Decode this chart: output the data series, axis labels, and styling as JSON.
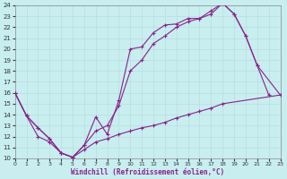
{
  "xlabel": "Windchill (Refroidissement éolien,°C)",
  "xlim": [
    0,
    23
  ],
  "ylim": [
    10,
    24
  ],
  "xticks": [
    0,
    1,
    2,
    3,
    4,
    5,
    6,
    7,
    8,
    9,
    10,
    11,
    12,
    13,
    14,
    15,
    16,
    17,
    18,
    19,
    20,
    21,
    22,
    23
  ],
  "yticks": [
    10,
    11,
    12,
    13,
    14,
    15,
    16,
    17,
    18,
    19,
    20,
    21,
    22,
    23,
    24
  ],
  "bg_color": "#c8eef0",
  "line_color": "#882288",
  "grid_color": "#b8dde0",
  "line1_x": [
    0,
    1,
    2,
    3,
    4,
    5,
    6,
    7,
    8,
    9,
    10,
    11,
    12,
    13,
    14,
    15,
    16,
    17,
    18,
    19,
    20,
    21,
    22
  ],
  "line1_y": [
    16,
    13.9,
    12.8,
    11.8,
    10.5,
    10.1,
    11.2,
    13.8,
    12.2,
    15.3,
    20.0,
    20.2,
    21.5,
    22.2,
    22.3,
    22.8,
    22.8,
    23.5,
    24.2,
    23.2,
    21.2,
    18.5,
    15.8
  ],
  "line2_x": [
    0,
    1,
    2,
    3,
    4,
    5,
    6,
    7,
    8,
    9,
    10,
    11,
    12,
    13,
    14,
    15,
    16,
    17,
    18,
    19,
    20,
    21,
    23
  ],
  "line2_y": [
    16,
    13.9,
    12.8,
    11.8,
    10.5,
    10.1,
    11.2,
    12.5,
    13.0,
    14.8,
    18.0,
    19.0,
    20.5,
    21.2,
    22.0,
    22.5,
    22.8,
    23.2,
    24.2,
    23.2,
    21.2,
    18.5,
    15.8
  ],
  "line3_x": [
    0,
    1,
    2,
    3,
    4,
    5,
    6,
    7,
    8,
    9,
    10,
    11,
    12,
    13,
    14,
    15,
    16,
    17,
    18,
    23
  ],
  "line3_y": [
    16,
    13.9,
    12.0,
    11.5,
    10.5,
    10.1,
    10.8,
    11.5,
    11.8,
    12.2,
    12.5,
    12.8,
    13.0,
    13.3,
    13.7,
    14.0,
    14.3,
    14.6,
    15.0,
    15.8
  ]
}
